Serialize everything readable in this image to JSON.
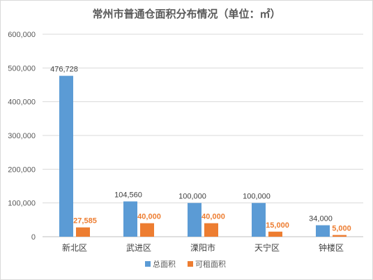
{
  "chart_data": {
    "type": "bar",
    "title": "常州市普通仓面积分布情况（单位：㎡）",
    "categories": [
      "新北区",
      "武进区",
      "溧阳市",
      "天宁区",
      "钟楼区"
    ],
    "series": [
      {
        "name": "总面积",
        "color": "#5b9bd5",
        "values": [
          476728,
          104560,
          100000,
          100000,
          34000
        ],
        "labels": [
          "476,728",
          "104,560",
          "100,000",
          "100,000",
          "34,000"
        ]
      },
      {
        "name": "可租面积",
        "color": "#ed7d31",
        "values": [
          27585,
          40000,
          40000,
          15000,
          5000
        ],
        "labels": [
          "27,585",
          "40,000",
          "40,000",
          "15,000",
          "5,000"
        ]
      }
    ],
    "ylim": [
      0,
      600000
    ],
    "yticks": [
      0,
      100000,
      200000,
      300000,
      400000,
      500000,
      600000
    ],
    "ytick_labels": [
      "0",
      "100,000",
      "200,000",
      "300,000",
      "400,000",
      "500,000",
      "600,000"
    ],
    "grid": true,
    "legend": "bottom",
    "xlabel": "",
    "ylabel": ""
  }
}
